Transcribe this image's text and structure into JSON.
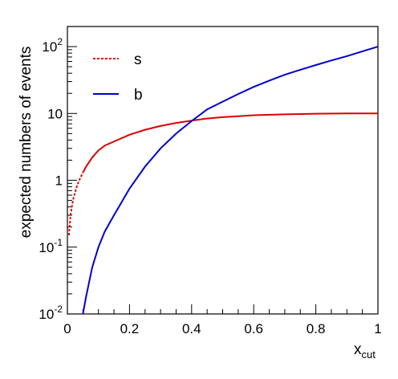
{
  "chart_data": {
    "type": "line",
    "title": "",
    "xlabel": "x",
    "xlabel_sub": "cut",
    "ylabel": "expected numbers of events",
    "xlim": [
      0,
      1
    ],
    "ylim": [
      0.01,
      200
    ],
    "y_scale": "log",
    "grid": false,
    "legend_position": "top-left",
    "x_ticks": [
      {
        "value": 0,
        "label": "0"
      },
      {
        "value": 0.2,
        "label": "0.2"
      },
      {
        "value": 0.4,
        "label": "0.4"
      },
      {
        "value": 0.6,
        "label": "0.6"
      },
      {
        "value": 0.8,
        "label": "0.8"
      },
      {
        "value": 1,
        "label": "1"
      }
    ],
    "y_ticks": [
      {
        "value": 0.01,
        "base": "10",
        "exp": "-2"
      },
      {
        "value": 0.1,
        "base": "10",
        "exp": "-1"
      },
      {
        "value": 1,
        "base": "1",
        "exp": ""
      },
      {
        "value": 10,
        "base": "10",
        "exp": ""
      },
      {
        "value": 100,
        "base": "10",
        "exp": "2"
      }
    ],
    "series": [
      {
        "name": "s",
        "color": "#dd0000",
        "dashed_until_x": 0.05,
        "x": [
          0.005,
          0.01,
          0.015,
          0.02,
          0.03,
          0.04,
          0.05,
          0.06,
          0.08,
          0.1,
          0.12,
          0.15,
          0.2,
          0.25,
          0.3,
          0.35,
          0.4,
          0.45,
          0.5,
          0.55,
          0.6,
          0.7,
          0.8,
          0.9,
          1.0
        ],
        "values": [
          0.15,
          0.3,
          0.42,
          0.55,
          0.8,
          1.05,
          1.3,
          1.6,
          2.2,
          2.8,
          3.3,
          3.8,
          4.8,
          5.7,
          6.5,
          7.2,
          7.8,
          8.4,
          8.8,
          9.1,
          9.4,
          9.7,
          9.9,
          10.0,
          10.0
        ]
      },
      {
        "name": "b",
        "color": "#0000cc",
        "x": [
          0.05,
          0.06,
          0.08,
          0.1,
          0.12,
          0.15,
          0.2,
          0.25,
          0.3,
          0.35,
          0.4,
          0.45,
          0.5,
          0.55,
          0.6,
          0.65,
          0.7,
          0.75,
          0.8,
          0.85,
          0.9,
          0.95,
          1.0
        ],
        "values": [
          0.01,
          0.018,
          0.05,
          0.1,
          0.17,
          0.3,
          0.75,
          1.6,
          3.0,
          5.0,
          7.7,
          11.5,
          15.0,
          19.5,
          25.0,
          31.0,
          38.0,
          45.0,
          53.0,
          62.0,
          72.0,
          85.0,
          100.0
        ]
      }
    ]
  }
}
